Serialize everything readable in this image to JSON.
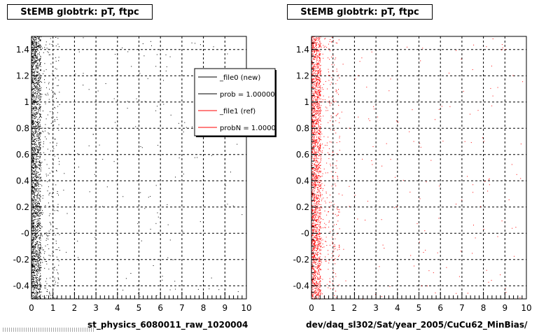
{
  "chart_data": [
    {
      "type": "scatter",
      "title": "StEMB globtrk: pT, ftpc",
      "xlabel": "st_physics_6080011_raw_1020004",
      "ylabel": "",
      "xlim": [
        0,
        10
      ],
      "ylim": [
        -0.5,
        1.5
      ],
      "x_ticks": [
        "0",
        "1",
        "2",
        "3",
        "4",
        "5",
        "6",
        "7",
        "8",
        "9",
        "10"
      ],
      "y_ticks": [
        "-0.4",
        "-0.2",
        "-0",
        "0.2",
        "0.4",
        "0.6",
        "0.8",
        "1",
        "1.2",
        "1.4"
      ],
      "grid": true,
      "series": [
        {
          "name": "_file0 (new)",
          "color": "#000000",
          "density": "concentrated at x 0-0.5, sparse tail to x 10, uniform in y"
        }
      ],
      "legend": {
        "placement": "top-right",
        "entries": [
          {
            "label": "_file0 (new)",
            "color": "#000000"
          },
          {
            "label": "prob = 1.000000",
            "color": "#000000"
          },
          {
            "label": "_file1 (ref)",
            "color": "#ff0000"
          },
          {
            "label": "probN = 1.000000",
            "color": "#ff0000"
          }
        ]
      }
    },
    {
      "type": "scatter",
      "title": "StEMB globtrk: pT, ftpc",
      "xlabel": "dev/daq_sl302/Sat/year_2005/CuCu62_MinBias/",
      "ylabel": "",
      "xlim": [
        0,
        10
      ],
      "ylim": [
        -0.5,
        1.5
      ],
      "x_ticks": [
        "0",
        "1",
        "2",
        "3",
        "4",
        "5",
        "6",
        "7",
        "8",
        "9",
        "10"
      ],
      "y_ticks": [
        "-0.4",
        "-0.2",
        "-0",
        "0.2",
        "0.4",
        "0.6",
        "0.8",
        "1",
        "1.2",
        "1.4"
      ],
      "grid": true,
      "series": [
        {
          "name": "_file1 (ref)",
          "color": "#ff0000",
          "density": "concentrated at x 0-0.5, sparse tail to x 10, uniform in y"
        }
      ]
    }
  ]
}
